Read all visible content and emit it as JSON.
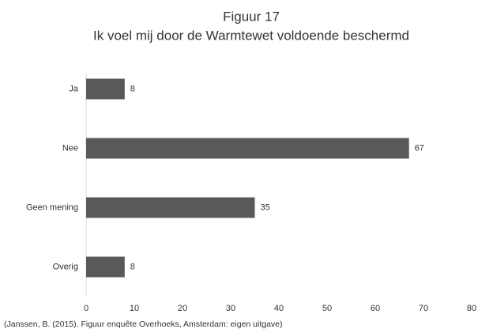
{
  "chart_data": {
    "type": "bar",
    "orientation": "horizontal",
    "title": "Figuur 17",
    "subtitle": "Ik voel mij door de Warmtewet voldoende beschermd",
    "categories": [
      "Ja",
      "Nee",
      "Geen mening",
      "Overig"
    ],
    "values": [
      8,
      67,
      35,
      8
    ],
    "color": "#595959",
    "xlim": [
      0,
      80
    ],
    "xticks": [
      0,
      10,
      20,
      30,
      40,
      50,
      60,
      70,
      80
    ],
    "grid": false,
    "source": "(Janssen, B. (2015). Figuur enquête Overhoeks, Amsterdam: eigen uitgave)"
  }
}
